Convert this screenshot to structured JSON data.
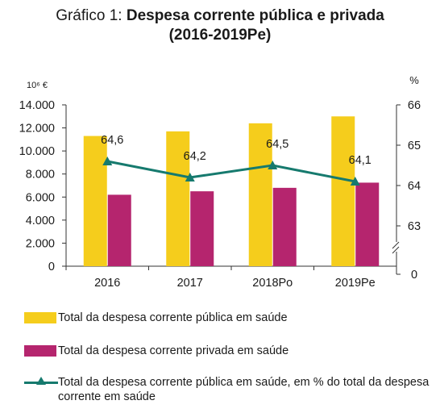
{
  "title": {
    "prefix": "Gráfico 1: ",
    "line1": "Despesa corrente pública e privada",
    "line2": "(2016-2019Pe)"
  },
  "chart_data": {
    "type": "bar",
    "categories": [
      "2016",
      "2017",
      "2018Po",
      "2019Pe"
    ],
    "series": [
      {
        "name": "Total da despesa corrente pública em saúde",
        "type": "bar",
        "axis": "left",
        "color": "#f5cd1c",
        "values": [
          11300,
          11700,
          12400,
          13000
        ]
      },
      {
        "name": "Total da despesa corrente privada em saúde",
        "type": "bar",
        "axis": "left",
        "color": "#b5256e",
        "values": [
          6200,
          6500,
          6800,
          7250
        ]
      },
      {
        "name": "Total da despesa corrente pública em saúde, em % do total da despesa corrente em saúde",
        "type": "line",
        "axis": "right",
        "color": "#167a6e",
        "marker": "triangle",
        "values": [
          64.6,
          64.2,
          64.5,
          64.1
        ],
        "labels": [
          "64,6",
          "64,2",
          "64,5",
          "64,1"
        ]
      }
    ],
    "left_axis": {
      "unit": "10⁶ €",
      "ylim": [
        0,
        14000
      ],
      "ticks": [
        0,
        2000,
        4000,
        6000,
        8000,
        10000,
        12000,
        14000
      ],
      "tick_labels": [
        "0",
        "2.000",
        "4.000",
        "6.000",
        "8.000",
        "10.000",
        "12.000",
        "14.000"
      ]
    },
    "right_axis": {
      "unit": "%",
      "ylim": [
        62,
        66
      ],
      "ticks": [
        63,
        64,
        65,
        66
      ],
      "tick_labels": [
        "63",
        "64",
        "65",
        "66"
      ],
      "zero_label": "0",
      "axis_break": true
    },
    "grid": false,
    "legend_position": "bottom"
  },
  "legend": {
    "items": [
      "Total da despesa corrente pública em saúde",
      "Total da despesa corrente privada em saúde",
      "Total da despesa corrente pública em saúde, em % do total da despesa corrente em saúde"
    ]
  }
}
